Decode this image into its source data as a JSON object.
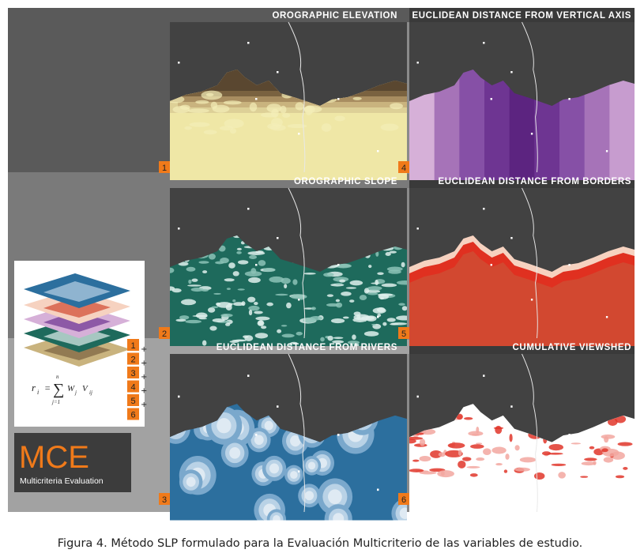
{
  "panels": [
    {
      "number": "1",
      "title": "OROGRAPHIC ELEVATION"
    },
    {
      "number": "2",
      "title": "OROGRAPHIC SLOPE"
    },
    {
      "number": "3",
      "title": "EUCLIDEAN DISTANCE FROM RIVERS"
    },
    {
      "number": "4",
      "title": "EUCLIDEAN DISTANCE FROM VERTICAL AXIS"
    },
    {
      "number": "5",
      "title": "EUCLIDEAN DISTANCE FROM BORDERS"
    },
    {
      "number": "6",
      "title": "CUMULATIVE VIEWSHED"
    }
  ],
  "legend": {
    "numbers": [
      "1",
      "2",
      "3",
      "4",
      "5",
      "6"
    ],
    "operator": "+",
    "formula": {
      "lhs": "r",
      "lhs_sub": "i",
      "equals": "=",
      "sum": "∑",
      "sum_top": "n",
      "sum_bottom": "j=1",
      "w": "W",
      "w_sub": "j",
      "v": "V",
      "v_sub": "ij"
    }
  },
  "logo": {
    "title": "MCE",
    "subtitle": "Multicriteria Evaluation"
  },
  "caption": "Figura 4. Método SLP formulado para la Evaluación Multicriterio de las variables de estudio."
}
